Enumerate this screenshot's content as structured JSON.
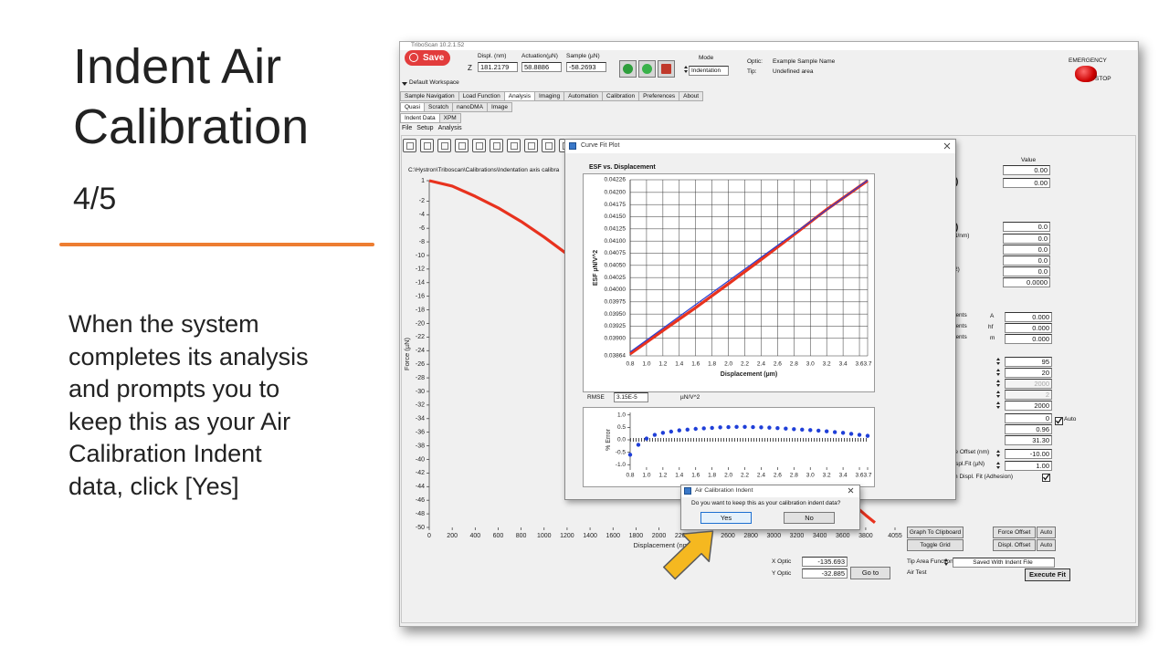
{
  "slide": {
    "title": "Indent Air Calibration",
    "step": "4/5",
    "body": [
      "When the system",
      "completes its analysis",
      "and prompts you to",
      "keep this as your Air",
      "Calibration Indent",
      "data, click [Yes]"
    ]
  },
  "app": {
    "title": "TriboScan 10.2.1.52",
    "save": "Save",
    "z_label": "Z",
    "readouts": [
      {
        "label": "Displ. (nm)",
        "value": "181.2179"
      },
      {
        "label": "Actuation(µN)",
        "value": "58.8886"
      },
      {
        "label": "Sample (µN)",
        "value": "-58.2693"
      }
    ],
    "mode_label": "Mode",
    "mode": "Indentation",
    "optic_label": "Optic:",
    "optic": "Example Sample Name",
    "tip_label": "Tip:",
    "tip": "Undefined area",
    "emergency": "EMERGENCY",
    "stop": "STOP",
    "workspace": "Default Workspace",
    "tabs": [
      "Sample Navigation",
      "Load Function",
      "Analysis",
      "Imaging",
      "Automation",
      "Calibration",
      "Preferences",
      "About"
    ],
    "selected_tab": 2,
    "subtabs": [
      "Quasi",
      "Scratch",
      "nanoDMA",
      "Image"
    ],
    "subtabs2": [
      "Indent Data",
      "XPM"
    ],
    "menu": [
      "File",
      "Setup",
      "Analysis"
    ],
    "file_path": "C:\\Hystron\\Triboscan\\Calibrations\\Indentation axis calibra"
  },
  "right_panel": {
    "value_header": "Value",
    "fields": [
      "0.00",
      "0.00",
      "0.0",
      "0.0",
      "0.0",
      "0.0",
      "0.0",
      "0.0000",
      "0.000",
      "0.000",
      "0.000",
      "95",
      "20",
      "2000",
      "2",
      "2000",
      "0",
      "0.96",
      "31.30",
      "-10.00",
      "1.00"
    ],
    "labels": [
      ")",
      ")",
      "µN/nm)",
      "2)",
      "ients",
      "ients",
      "ients",
      "A",
      "hf",
      "m",
      "rce Offset (nm)",
      "Displ.Fit (µN)",
      "t in Displ. Fit (Adhesion)"
    ],
    "auto": "Auto",
    "buttons": {
      "graph": "Graph To Clipboard",
      "grid": "Toggle Grid",
      "force_offset": "Force Offset",
      "force_auto": "Auto",
      "displ_offset": "Displ. Offset",
      "displ_auto": "Auto",
      "execute": "Execute Fit"
    },
    "tip_area_label": "Tip Area Function",
    "tip_area": "Saved With Indent File",
    "air_test": "Air Test",
    "x_optic_label": "X Optic",
    "x_optic": "-135.693",
    "y_optic_label": "Y Optic",
    "y_optic": "-32.885",
    "goto": "Go to"
  },
  "force_plot": {
    "type": "line",
    "x_label": "Displacement (nm)",
    "y_label": "Force (µN)",
    "xlim": [
      0,
      4055
    ],
    "ylim": [
      -50,
      1
    ],
    "xticks": [
      0,
      200,
      400,
      600,
      800,
      1000,
      1200,
      1400,
      1600,
      1800,
      2000,
      2200,
      2400,
      2600,
      2800,
      3000,
      3200,
      3400,
      3600,
      3800,
      4055
    ],
    "yticks": [
      1,
      -2,
      -4,
      -6,
      -8,
      -10,
      -12,
      -14,
      -16,
      -18,
      -20,
      -22,
      -24,
      -26,
      -28,
      -30,
      -32,
      -34,
      -36,
      -38,
      -40,
      -42,
      -44,
      -46,
      -48,
      -50
    ],
    "x": [
      0,
      200,
      400,
      600,
      800,
      1000,
      1200,
      1400,
      1600,
      1800,
      2000,
      2400,
      2800,
      3200,
      3600,
      3800,
      3880
    ],
    "series": [
      {
        "color": "#e8321e",
        "values": [
          1,
          0.2,
          -1.3,
          -3,
          -5,
          -7.3,
          -9.8,
          -12.5,
          -15.3,
          -18.2,
          -21.2,
          -27.2,
          -33.3,
          -39.4,
          -45.3,
          -48.2,
          -49.3
        ]
      }
    ]
  },
  "curve_fit": {
    "title": "Curve Fit Plot",
    "esf": {
      "type": "line",
      "title": "ESF vs. Displacement",
      "x_label": "Displacement (µm)",
      "y_label": "ESF µN/V^2",
      "grid": true,
      "xlim": [
        0.8,
        3.7
      ],
      "ylim": [
        0.03864,
        0.04226
      ],
      "xticks": [
        0.8,
        {
          "value": 1,
          "label": "1.0"
        },
        1.2,
        1.4,
        1.6,
        1.8,
        {
          "value": 2,
          "label": "2.0"
        },
        2.2,
        2.4,
        2.6,
        2.8,
        {
          "value": 3,
          "label": "3.0"
        },
        3.2,
        3.4,
        3.6,
        3.7
      ],
      "yticks": [
        0.03864,
        {
          "value": 0.039,
          "label": "0.03900"
        },
        0.03925,
        {
          "value": 0.0395,
          "label": "0.03950"
        },
        0.03975,
        {
          "value": 0.04,
          "label": "0.04000"
        },
        0.04025,
        {
          "value": 0.0405,
          "label": "0.04050"
        },
        0.04075,
        {
          "value": 0.041,
          "label": "0.04100"
        },
        0.04125,
        {
          "value": 0.0415,
          "label": "0.04150"
        },
        0.04175,
        {
          "value": 0.042,
          "label": "0.04200"
        },
        0.04226
      ],
      "series": [
        {
          "color": "#e8321e",
          "x": [
            0.8,
            1.2,
            1.6,
            2.0,
            2.4,
            2.8,
            3.2,
            3.7
          ],
          "values": [
            0.03868,
            0.03916,
            0.03963,
            0.04012,
            0.04062,
            0.04113,
            0.04165,
            0.04224
          ]
        },
        {
          "color": "#2a3fd0",
          "x": [
            0.8,
            3.7
          ],
          "values": [
            0.03872,
            0.04225
          ]
        }
      ]
    },
    "rmse_label": "RMSE",
    "rmse": "3.15E-5",
    "rmse_unit": "µN/V^2",
    "error": {
      "type": "scatter",
      "y_label": "% Error",
      "color": "#1f3fd8",
      "xlim": [
        0.8,
        3.7
      ],
      "ylim": [
        -1.1,
        1.1
      ],
      "xticks": [
        0.8,
        {
          "value": 1,
          "label": "1.0"
        },
        1.2,
        1.4,
        1.6,
        1.8,
        {
          "value": 2,
          "label": "2.0"
        },
        2.2,
        2.4,
        2.6,
        2.8,
        {
          "value": 3,
          "label": "3.0"
        },
        3.2,
        3.4,
        3.6,
        3.7
      ],
      "yticks": [
        {
          "value": 1,
          "label": "1.0"
        },
        0.5,
        {
          "value": 0,
          "label": "0.0"
        },
        -0.5,
        {
          "value": -1,
          "label": "-1.0"
        }
      ],
      "x": [
        0.8,
        0.9,
        1.0,
        1.1,
        1.2,
        1.3,
        1.4,
        1.5,
        1.6,
        1.7,
        1.8,
        1.9,
        2.0,
        2.1,
        2.2,
        2.3,
        2.4,
        2.5,
        2.6,
        2.7,
        2.8,
        2.9,
        3.0,
        3.1,
        3.2,
        3.3,
        3.4,
        3.5,
        3.6,
        3.7
      ],
      "values": [
        -0.6,
        -0.2,
        0.05,
        0.2,
        0.28,
        0.33,
        0.38,
        0.41,
        0.44,
        0.46,
        0.48,
        0.5,
        0.51,
        0.52,
        0.52,
        0.51,
        0.5,
        0.49,
        0.47,
        0.45,
        0.43,
        0.41,
        0.39,
        0.37,
        0.34,
        0.31,
        0.28,
        0.24,
        0.2,
        0.16
      ]
    }
  },
  "air_dialog": {
    "title": "Air Calibration Indent",
    "message": "Do you want to keep this as your calibration indent data?",
    "yes": "Yes",
    "no": "No"
  }
}
